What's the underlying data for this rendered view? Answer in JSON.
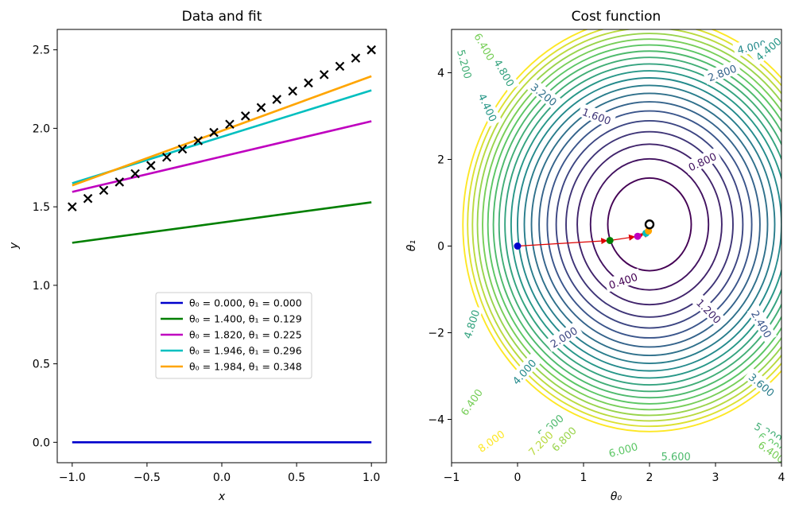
{
  "chart_data": [
    {
      "type": "line",
      "title": "Data and fit",
      "xlabel": "x",
      "ylabel": "y",
      "xlim": [
        -1.1,
        1.1
      ],
      "ylim": [
        -0.13,
        2.63
      ],
      "xticks": [
        -1.0,
        -0.5,
        0.0,
        0.5,
        1.0
      ],
      "xtick_labels": [
        "−1.0",
        "−0.5",
        "0.0",
        "0.5",
        "1.0"
      ],
      "yticks": [
        0.0,
        0.5,
        1.0,
        1.5,
        2.0,
        2.5
      ],
      "ytick_labels": [
        "0.0",
        "0.5",
        "1.0",
        "1.5",
        "2.0",
        "2.5"
      ],
      "scatter": {
        "marker": "x",
        "color": "#000000",
        "x": [
          -1.0,
          -0.895,
          -0.789,
          -0.684,
          -0.579,
          -0.474,
          -0.368,
          -0.263,
          -0.158,
          -0.053,
          0.053,
          0.158,
          0.263,
          0.368,
          0.474,
          0.579,
          0.684,
          0.789,
          0.895,
          1.0
        ],
        "y": [
          1.5,
          1.553,
          1.605,
          1.658,
          1.711,
          1.763,
          1.816,
          1.868,
          1.921,
          1.974,
          2.026,
          2.079,
          2.132,
          2.184,
          2.237,
          2.289,
          2.342,
          2.395,
          2.447,
          2.5
        ]
      },
      "series": [
        {
          "name": "θ₀ = 0.000, θ₁ = 0.000",
          "theta0": 0.0,
          "theta1": 0.0,
          "color": "#0000cc"
        },
        {
          "name": "θ₀ = 1.400, θ₁ = 0.129",
          "theta0": 1.4,
          "theta1": 0.129,
          "color": "#007f00"
        },
        {
          "name": "θ₀ = 1.820, θ₁ = 0.225",
          "theta0": 1.82,
          "theta1": 0.225,
          "color": "#bf00bf"
        },
        {
          "name": "θ₀ = 1.946, θ₁ = 0.296",
          "theta0": 1.946,
          "theta1": 0.296,
          "color": "#00bfbf"
        },
        {
          "name": "θ₀ = 1.984, θ₁ = 0.348",
          "theta0": 1.984,
          "theta1": 0.348,
          "color": "#ffa500"
        }
      ],
      "legend_position": "lower-center"
    },
    {
      "type": "contour",
      "title": "Cost function",
      "xlabel": "θ₀",
      "ylabel": "θ₁",
      "xlim": [
        -1,
        4
      ],
      "ylim": [
        -5,
        5
      ],
      "xticks": [
        -1,
        0,
        1,
        2,
        3,
        4
      ],
      "xtick_labels": [
        "−1",
        "0",
        "1",
        "2",
        "3",
        "4"
      ],
      "yticks": [
        -4,
        -2,
        0,
        2,
        4
      ],
      "ytick_labels": [
        "−4",
        "−2",
        "0",
        "2",
        "4"
      ],
      "minimum": {
        "theta0": 2.0,
        "theta1": 0.5
      },
      "cost_model": {
        "a": 1.0,
        "b": 0.35
      },
      "levels": [
        0.4,
        0.8,
        1.2,
        1.6,
        2.0,
        2.4,
        2.8,
        3.2,
        3.6,
        4.0,
        4.4,
        4.8,
        5.2,
        5.6,
        6.0,
        6.4,
        6.8,
        7.2,
        7.6,
        8.0
      ],
      "contour_labels": [
        {
          "text": "0.400",
          "theta0": 1.6,
          "theta1": -0.8,
          "angle": 18
        },
        {
          "text": "0.800",
          "theta0": 2.8,
          "theta1": 1.95,
          "angle": 25
        },
        {
          "text": "1.200",
          "theta0": 2.9,
          "theta1": -1.5,
          "angle": -45
        },
        {
          "text": "1.600",
          "theta0": 1.2,
          "theta1": 3.0,
          "angle": -20
        },
        {
          "text": "2.000",
          "theta0": 0.7,
          "theta1": -2.1,
          "angle": 32
        },
        {
          "text": "2.400",
          "theta0": 3.7,
          "theta1": -1.8,
          "angle": -60
        },
        {
          "text": "2.800",
          "theta0": 3.1,
          "theta1": 4.0,
          "angle": 20
        },
        {
          "text": "3.200",
          "theta0": 0.4,
          "theta1": 3.5,
          "angle": -38
        },
        {
          "text": "3.600",
          "theta0": 3.7,
          "theta1": -3.2,
          "angle": -40
        },
        {
          "text": "4.000",
          "theta0": 3.55,
          "theta1": 4.6,
          "angle": 13
        },
        {
          "text": "4.000",
          "theta0": 0.1,
          "theta1": -2.9,
          "angle": 48
        },
        {
          "text": "4.400",
          "theta0": -0.45,
          "theta1": 3.2,
          "angle": -65
        },
        {
          "text": "4.400",
          "theta0": 3.8,
          "theta1": 4.55,
          "angle": 40
        },
        {
          "text": "4.800",
          "theta0": -0.2,
          "theta1": 4.0,
          "angle": -60
        },
        {
          "text": "4.800",
          "theta0": -0.7,
          "theta1": -1.8,
          "angle": 72
        },
        {
          "text": "5.200",
          "theta0": -0.8,
          "theta1": 4.2,
          "angle": -75
        },
        {
          "text": "5.200",
          "theta0": 3.8,
          "theta1": -4.3,
          "angle": -30
        },
        {
          "text": "5.600",
          "theta0": 0.5,
          "theta1": -4.15,
          "angle": 40
        },
        {
          "text": "5.600",
          "theta0": 2.4,
          "theta1": -4.85,
          "angle": 0
        },
        {
          "text": "6.000",
          "theta0": 1.6,
          "theta1": -4.7,
          "angle": 15
        },
        {
          "text": "6.000",
          "theta0": 3.85,
          "theta1": -4.55,
          "angle": -35
        },
        {
          "text": "6.400",
          "theta0": -0.7,
          "theta1": -3.6,
          "angle": 55
        },
        {
          "text": "6.400",
          "theta0": 3.85,
          "theta1": -4.75,
          "angle": -35
        },
        {
          "text": "6.400",
          "theta0": -0.5,
          "theta1": 4.6,
          "angle": -60
        },
        {
          "text": "6.800",
          "theta0": 0.7,
          "theta1": -4.45,
          "angle": 45
        },
        {
          "text": "7.200",
          "theta0": 0.35,
          "theta1": -4.55,
          "angle": 45
        },
        {
          "text": "8.000",
          "theta0": -0.4,
          "theta1": -4.5,
          "angle": 35
        }
      ],
      "gradient_path": [
        {
          "theta0": 0.0,
          "theta1": 0.0,
          "color": "#0000cc"
        },
        {
          "theta0": 1.4,
          "theta1": 0.129,
          "color": "#007f00"
        },
        {
          "theta0": 1.82,
          "theta1": 0.225,
          "color": "#bf00bf"
        },
        {
          "theta0": 1.946,
          "theta1": 0.296,
          "color": "#00bfbf"
        },
        {
          "theta0": 1.984,
          "theta1": 0.348,
          "color": "#ffa500"
        }
      ],
      "arrow_color": "#dd0000"
    }
  ]
}
